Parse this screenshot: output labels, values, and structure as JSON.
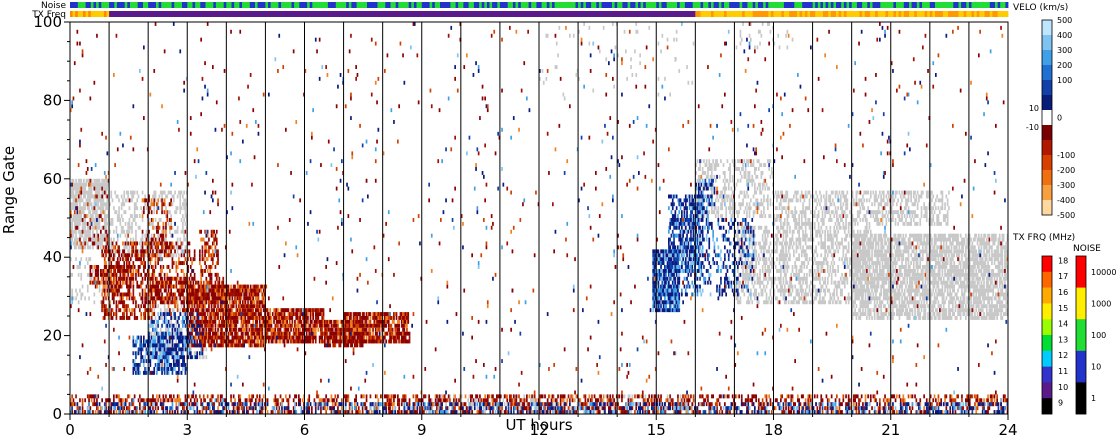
{
  "strip_labels": {
    "noise": "Noise",
    "txfreq": "TX Freq"
  },
  "chart_data": {
    "type": "heatmap",
    "title": "",
    "xlabel": "UT hours",
    "ylabel": "Range Gate",
    "xlim": [
      0,
      24
    ],
    "ylim": [
      0,
      100
    ],
    "x_ticks": [
      0,
      3,
      6,
      9,
      12,
      15,
      18,
      21,
      24
    ],
    "y_ticks": [
      0,
      20,
      40,
      60,
      80,
      100
    ],
    "hour_gridlines": true,
    "colors": {
      "ground_scatter": "#c8c8c8",
      "toward": "#0a1a80",
      "away": "#8b0000",
      "noise_strip_a": "#22dd33",
      "noise_strip_b": "#2233cc",
      "txfreq_strip_a": "#5a1a8a",
      "txfreq_strip_b": "#ffcc00"
    },
    "velocity_colorbar": {
      "title": "VELO (km/s)",
      "ticks": [
        "500",
        "400",
        "300",
        "200",
        "100",
        "10",
        "0",
        "-10",
        "-100",
        "-200",
        "-300",
        "-400",
        "-500"
      ],
      "colors": [
        "#bfe6ff",
        "#7fc4f0",
        "#3fa0e8",
        "#1f70d0",
        "#1040a8",
        "#081c78",
        "#ffffff",
        "#7a0000",
        "#b01800",
        "#d84000",
        "#f07010",
        "#f8a040",
        "#ffd8a0"
      ]
    },
    "txfreq_colorbar": {
      "title": "TX FRQ (MHz)",
      "ticks": [
        "18",
        "17",
        "16",
        "15",
        "14",
        "13",
        "12",
        "11",
        "10",
        "9"
      ],
      "colors": [
        "#ff0000",
        "#ff6600",
        "#ffaa00",
        "#ffee00",
        "#99ff00",
        "#00dd33",
        "#00ccff",
        "#3333cc",
        "#5a1a8a",
        "#000000"
      ]
    },
    "noise_colorbar": {
      "title": "NOISE",
      "ticks": [
        "10000",
        "1000",
        "100",
        "10",
        "1"
      ],
      "colors": [
        "#ff0000",
        "#ffee00",
        "#22dd33",
        "#2233cc",
        "#000000"
      ]
    },
    "regions": [
      {
        "type": "ground",
        "x": [
          0.0,
          1.0
        ],
        "y": [
          42,
          60
        ],
        "density": 0.75
      },
      {
        "type": "ground",
        "x": [
          1.0,
          3.0
        ],
        "y": [
          40,
          57
        ],
        "density": 0.35
      },
      {
        "type": "ground",
        "x": [
          0.0,
          1.0
        ],
        "y": [
          28,
          40
        ],
        "density": 0.15
      },
      {
        "type": "ground",
        "x": [
          2.0,
          3.5
        ],
        "y": [
          14,
          30
        ],
        "density": 0.3
      },
      {
        "type": "ground",
        "x": [
          9.0,
          16.0
        ],
        "y": [
          0,
          5
        ],
        "density": 0.25
      },
      {
        "type": "ground",
        "x": [
          16.0,
          18.0
        ],
        "y": [
          50,
          65
        ],
        "density": 0.35
      },
      {
        "type": "ground",
        "x": [
          18.0,
          22.5
        ],
        "y": [
          48,
          57
        ],
        "density": 0.45
      },
      {
        "type": "ground",
        "x": [
          17.0,
          20.5
        ],
        "y": [
          28,
          48
        ],
        "density": 0.45
      },
      {
        "type": "ground",
        "x": [
          20.0,
          24.0
        ],
        "y": [
          24,
          46
        ],
        "density": 0.7
      },
      {
        "type": "ground",
        "x": [
          17.0,
          18.5
        ],
        "y": [
          93,
          100
        ],
        "density": 0.1
      },
      {
        "type": "away",
        "x": [
          0.0,
          1.0
        ],
        "y": [
          42,
          60
        ],
        "density": 0.1
      },
      {
        "type": "away",
        "x": [
          0.8,
          2.2
        ],
        "y": [
          24,
          44
        ],
        "density": 0.5
      },
      {
        "type": "away",
        "x": [
          1.8,
          2.6
        ],
        "y": [
          40,
          55
        ],
        "density": 0.3
      },
      {
        "type": "away",
        "x": [
          2.2,
          3.2
        ],
        "y": [
          26,
          44
        ],
        "density": 0.3
      },
      {
        "type": "away",
        "x": [
          3.3,
          3.8
        ],
        "y": [
          35,
          47
        ],
        "density": 0.45
      },
      {
        "type": "away",
        "x": [
          2.0,
          4.0
        ],
        "y": [
          28,
          35
        ],
        "density": 0.5
      },
      {
        "type": "away",
        "x": [
          3.0,
          5.0
        ],
        "y": [
          17,
          33
        ],
        "density": 0.8
      },
      {
        "type": "away",
        "x": [
          5.0,
          6.5
        ],
        "y": [
          18,
          27
        ],
        "density": 0.8
      },
      {
        "type": "away",
        "x": [
          6.5,
          7.5
        ],
        "y": [
          17,
          24
        ],
        "density": 0.8
      },
      {
        "type": "away",
        "x": [
          7.0,
          8.7
        ],
        "y": [
          18,
          26
        ],
        "density": 0.8
      },
      {
        "type": "away",
        "x": [
          0.5,
          1.5
        ],
        "y": [
          32,
          38
        ],
        "density": 0.6
      },
      {
        "type": "away",
        "x": [
          0.0,
          24.0
        ],
        "y": [
          0,
          5
        ],
        "density": 0.4
      },
      {
        "type": "toward",
        "x": [
          1.6,
          3.0
        ],
        "y": [
          10,
          20
        ],
        "density": 0.6
      },
      {
        "type": "toward",
        "x": [
          2.0,
          3.4
        ],
        "y": [
          14,
          26
        ],
        "density": 0.35
      },
      {
        "type": "toward",
        "x": [
          14.9,
          15.6
        ],
        "y": [
          26,
          42
        ],
        "density": 0.85
      },
      {
        "type": "toward",
        "x": [
          15.3,
          16.2
        ],
        "y": [
          36,
          56
        ],
        "density": 0.55
      },
      {
        "type": "toward",
        "x": [
          15.5,
          17.5
        ],
        "y": [
          30,
          50
        ],
        "density": 0.25
      },
      {
        "type": "toward",
        "x": [
          16.0,
          16.5
        ],
        "y": [
          48,
          60
        ],
        "density": 0.4
      },
      {
        "type": "toward",
        "x": [
          0.0,
          24.0
        ],
        "y": [
          0,
          3
        ],
        "density": 0.3
      },
      {
        "type": "toward",
        "x": [
          0.0,
          24.0
        ],
        "y": [
          0,
          100
        ],
        "density": 0.006
      },
      {
        "type": "away",
        "x": [
          0.0,
          24.0
        ],
        "y": [
          0,
          100
        ],
        "density": 0.01
      },
      {
        "type": "ground",
        "x": [
          12.0,
          16.0
        ],
        "y": [
          80,
          100
        ],
        "density": 0.02
      }
    ]
  }
}
